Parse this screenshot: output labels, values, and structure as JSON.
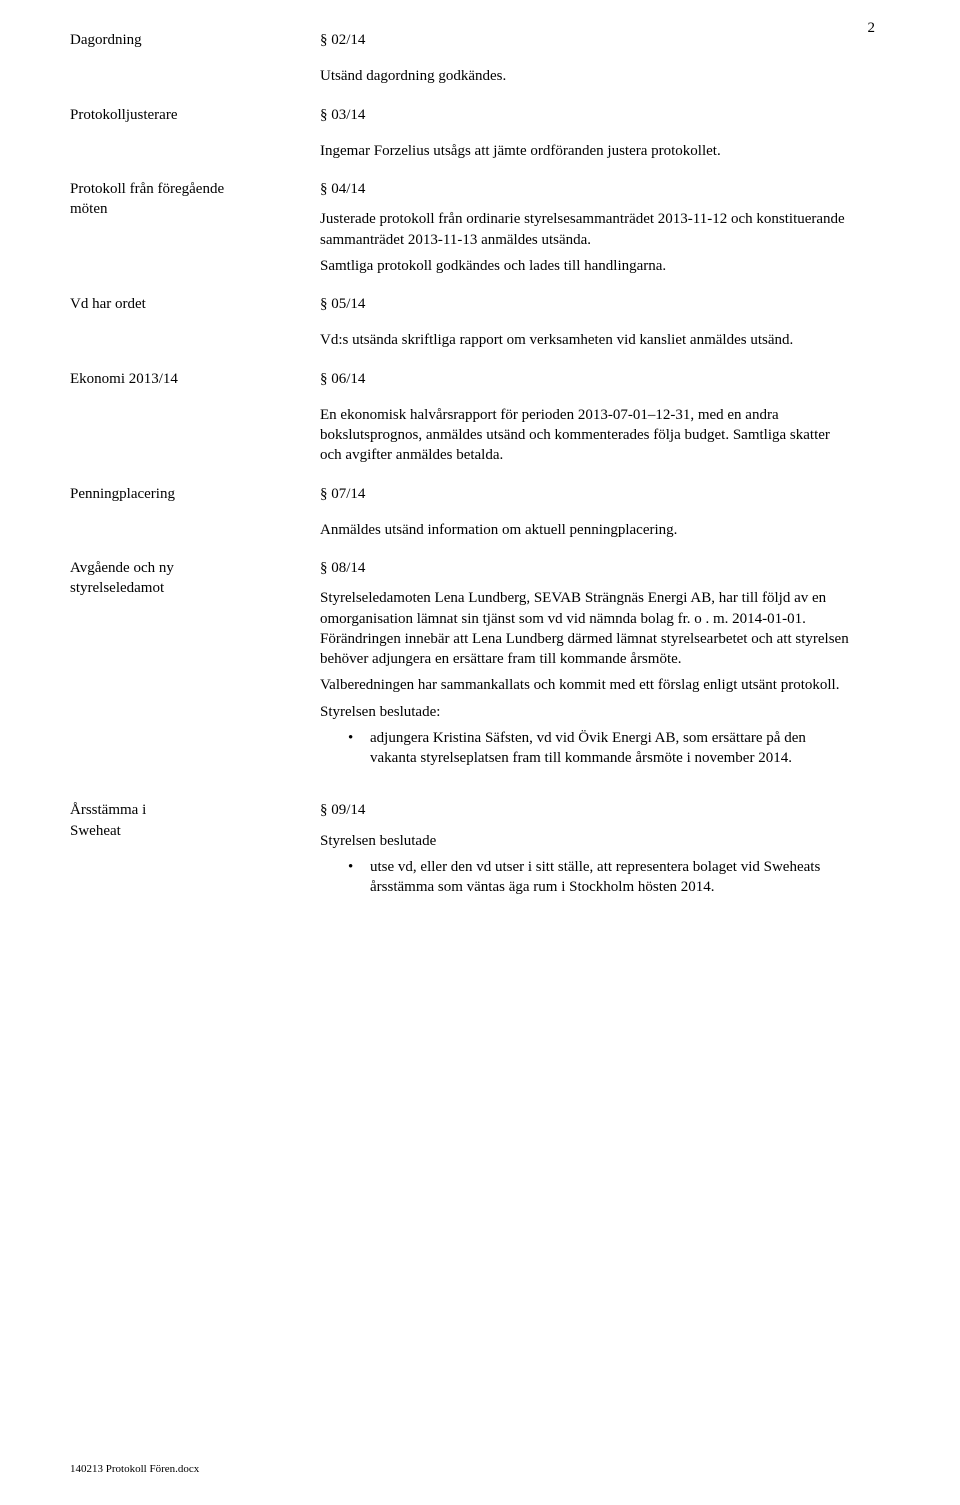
{
  "page": {
    "number": "2",
    "footer": "140213 Protokoll Fören.docx",
    "text_color": "#000000",
    "background_color": "#ffffff",
    "body_fontsize": 15,
    "footer_fontsize": 11
  },
  "entries": {
    "dagordning": {
      "label": "Dagordning",
      "ref": "§ 02/14",
      "body": "Utsänd dagordning godkändes."
    },
    "protokolljusterare": {
      "label": "Protokolljusterare",
      "ref": "§ 03/14",
      "body": "Ingemar Forzelius utsågs att jämte ordföranden justera protokollet."
    },
    "protokoll_foregaende": {
      "label1": "Protokoll från föregående",
      "label2": "möten",
      "ref": "§ 04/14",
      "p1": "Justerade protokoll från ordinarie styrelsesammanträdet 2013-11-12 och konstituerande sammanträdet 2013-11-13 anmäldes utsända.",
      "p2": "Samtliga protokoll godkändes och lades till handlingarna."
    },
    "vd_har_ordet": {
      "label": "Vd har ordet",
      "ref": "§ 05/14",
      "body": "Vd:s utsända skriftliga rapport om verksamheten vid kansliet anmäldes utsänd."
    },
    "ekonomi": {
      "label": "Ekonomi 2013/14",
      "ref": "§ 06/14",
      "body": "En ekonomisk halvårsrapport för perioden 2013-07-01–12-31, med en andra bokslutsprognos, anmäldes utsänd och kommenterades följa budget. Samtliga skatter och avgifter anmäldes betalda."
    },
    "penningplacering": {
      "label": "Penningplacering",
      "ref": "§ 07/14",
      "body": "Anmäldes utsänd information om aktuell penningplacering."
    },
    "avgaende": {
      "label1": "Avgående och ny",
      "label2": "styrelseledamot",
      "ref": "§ 08/14",
      "p1": "Styrelseledamoten Lena Lundberg, SEVAB Strängnäs Energi AB,  har till följd av en omorganisation lämnat sin tjänst som vd vid nämnda bolag  fr. o . m. 2014-01-01. Förändringen innebär att Lena Lundberg därmed lämnat styrelsearbetet och att styrelsen behöver adjungera en ersättare fram till kommande årsmöte.",
      "p2": "Valberedningen har sammankallats och kommit med ett förslag enligt utsänt protokoll.",
      "p3": "Styrelsen beslutade:",
      "bullet": "adjungera Kristina Säfsten, vd vid Övik Energi AB, som ersättare på den vakanta styrelseplatsen fram till kommande årsmöte i november 2014."
    },
    "arsstamma": {
      "label1": "Årsstämma i",
      "label2": "Sweheat",
      "ref": "§ 09/14",
      "p1": "Styrelsen beslutade",
      "bullet": "utse vd, eller den vd utser i sitt ställe, att representera bolaget vid Sweheats årsstämma som väntas äga rum i Stockholm hösten 2014."
    }
  }
}
